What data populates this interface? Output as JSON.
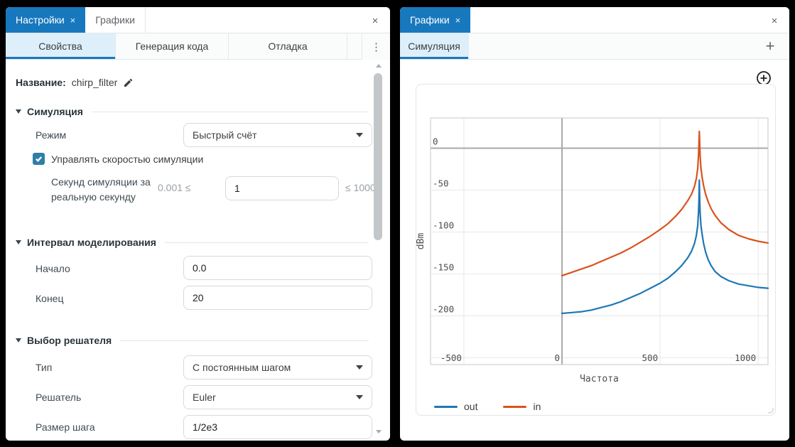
{
  "settings_panel": {
    "tab_settings": "Настройки",
    "tab_settings_close": "×",
    "tab_charts": "Графики",
    "panel_close": "×",
    "subtab_properties": "Свойства",
    "subtab_codegen": "Генерация кода",
    "subtab_debug": "Отладка",
    "overflow_menu": "⋮",
    "name_label": "Название:",
    "name_value": "chirp_filter",
    "section_simulation": "Симуляция",
    "mode_label": "Режим",
    "mode_value": "Быстрый счёт",
    "speed_checkbox_label": "Управлять скоростью симуляции",
    "speed_checkbox_checked": true,
    "speed_label_line1": "Секунд симуляции за",
    "speed_label_line2": "реальную секунду",
    "speed_min": "0.001 ≤",
    "speed_value": "1",
    "speed_max": "≤ 1000",
    "section_interval": "Интервал моделирования",
    "start_label": "Начало",
    "start_value": "0.0",
    "end_label": "Конец",
    "end_value": "20",
    "section_solver": "Выбор решателя",
    "type_label": "Тип",
    "type_value": "С постоянным шагом",
    "solver_label": "Решатель",
    "solver_value": "Euler",
    "step_label": "Размер шага",
    "step_value": "1/2e3"
  },
  "charts_panel": {
    "tab_charts": "Графики",
    "tab_charts_close": "×",
    "panel_close": "×",
    "subtab_simulation": "Симуляция",
    "add_tab_label": "+"
  },
  "colors": {
    "accent_tab_blue": "#1878be",
    "subtab_active_bg": "#ddeffa",
    "checkbox_blue": "#2f7ea8",
    "series_out": "#1f77b4",
    "series_in": "#d9531e"
  },
  "chart_data": {
    "type": "line",
    "xlabel": "Частота",
    "ylabel": "dBm",
    "grid": true,
    "legend_position": "bottom",
    "xlim": [
      -670,
      1050
    ],
    "ylim": [
      -258,
      36
    ],
    "x_ticks": [
      -500,
      0,
      500,
      1000
    ],
    "y_ticks": [
      0,
      -50,
      -100,
      -150,
      -200
    ],
    "y_grid_extra": [
      -250
    ],
    "series": [
      {
        "name": "out",
        "color": "#1f77b4",
        "points": [
          [
            0,
            -197
          ],
          [
            50,
            -196
          ],
          [
            100,
            -195
          ],
          [
            150,
            -193
          ],
          [
            200,
            -190
          ],
          [
            250,
            -187
          ],
          [
            300,
            -183
          ],
          [
            350,
            -178
          ],
          [
            400,
            -173
          ],
          [
            450,
            -167
          ],
          [
            500,
            -161
          ],
          [
            540,
            -155
          ],
          [
            580,
            -147
          ],
          [
            610,
            -140
          ],
          [
            640,
            -131
          ],
          [
            660,
            -123
          ],
          [
            675,
            -114
          ],
          [
            685,
            -104
          ],
          [
            692,
            -92
          ],
          [
            696,
            -76
          ],
          [
            698,
            -62
          ],
          [
            700,
            -38
          ],
          [
            702,
            -62
          ],
          [
            704,
            -76
          ],
          [
            708,
            -92
          ],
          [
            715,
            -104
          ],
          [
            722,
            -114
          ],
          [
            732,
            -124
          ],
          [
            745,
            -133
          ],
          [
            760,
            -140
          ],
          [
            780,
            -147
          ],
          [
            810,
            -153
          ],
          [
            850,
            -158
          ],
          [
            900,
            -162
          ],
          [
            950,
            -164
          ],
          [
            1000,
            -166
          ],
          [
            1050,
            -167
          ]
        ]
      },
      {
        "name": "in",
        "color": "#d9531e",
        "points": [
          [
            0,
            -152
          ],
          [
            50,
            -148
          ],
          [
            100,
            -144
          ],
          [
            150,
            -140
          ],
          [
            200,
            -135
          ],
          [
            250,
            -130
          ],
          [
            300,
            -125
          ],
          [
            350,
            -119
          ],
          [
            400,
            -112
          ],
          [
            450,
            -105
          ],
          [
            500,
            -97
          ],
          [
            540,
            -90
          ],
          [
            580,
            -81
          ],
          [
            610,
            -73
          ],
          [
            640,
            -63
          ],
          [
            660,
            -55
          ],
          [
            675,
            -46
          ],
          [
            685,
            -36
          ],
          [
            692,
            -24
          ],
          [
            696,
            -8
          ],
          [
            698,
            6
          ],
          [
            700,
            20
          ],
          [
            702,
            6
          ],
          [
            704,
            -8
          ],
          [
            708,
            -24
          ],
          [
            715,
            -36
          ],
          [
            722,
            -45
          ],
          [
            732,
            -55
          ],
          [
            745,
            -64
          ],
          [
            760,
            -72
          ],
          [
            780,
            -80
          ],
          [
            810,
            -89
          ],
          [
            850,
            -97
          ],
          [
            900,
            -104
          ],
          [
            950,
            -108
          ],
          [
            1000,
            -111
          ],
          [
            1050,
            -113
          ]
        ]
      }
    ]
  }
}
